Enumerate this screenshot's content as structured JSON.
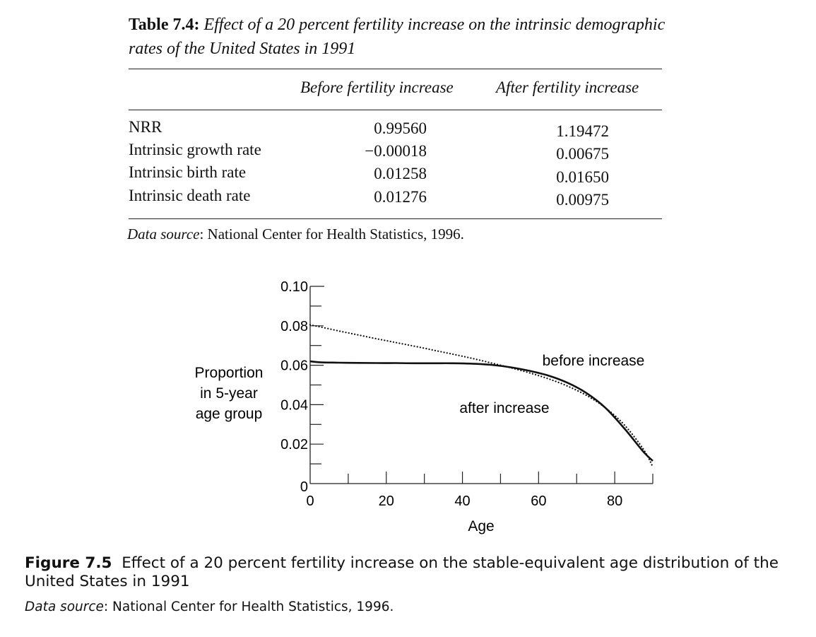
{
  "table": {
    "label": "Table 7.4:",
    "title": "Effect of a 20 percent fertility increase on the intrinsic demographic rates of the United States in 1991",
    "columns": [
      "Before fertility increase",
      "After fertility increase"
    ],
    "rows": [
      {
        "label": "NRR",
        "before": "0.99560",
        "after": "1.19472"
      },
      {
        "label": "Intrinsic growth rate",
        "before": "−0.00018",
        "after": "0.00675"
      },
      {
        "label": "Intrinsic birth rate",
        "before": "0.01258",
        "after": "0.01650"
      },
      {
        "label": "Intrinsic death rate",
        "before": "0.01276",
        "after": "0.00975"
      }
    ],
    "source_label": "Data source",
    "source_text": ": National Center for Health Statistics, 1996."
  },
  "chart_data": {
    "type": "line",
    "xlabel": "Age",
    "ylabel": "Proportion in 5-year age group",
    "xlim": [
      0,
      90
    ],
    "ylim": [
      0,
      0.1
    ],
    "x_ticks": [
      "0",
      "20",
      "40",
      "60",
      "80"
    ],
    "y_ticks": [
      "0",
      "0.02",
      "0.04",
      "0.06",
      "0.08",
      "0.10"
    ],
    "grid": false,
    "series": [
      {
        "name": "before increase",
        "style": "solid",
        "x": [
          0,
          2.5,
          7.5,
          12.5,
          17.5,
          22.5,
          27.5,
          32.5,
          37.5,
          42.5,
          47.5,
          52.5,
          57.5,
          62.5,
          67.5,
          72.5,
          77.5,
          82.5,
          87.5,
          90
        ],
        "y": [
          0.062,
          0.0615,
          0.0613,
          0.0612,
          0.0611,
          0.0611,
          0.061,
          0.061,
          0.061,
          0.0608,
          0.0602,
          0.059,
          0.0572,
          0.0548,
          0.0512,
          0.046,
          0.0385,
          0.028,
          0.0162,
          0.0115
        ]
      },
      {
        "name": "after increase",
        "style": "dotted",
        "x": [
          0,
          2.5,
          7.5,
          12.5,
          17.5,
          22.5,
          27.5,
          32.5,
          37.5,
          42.5,
          47.5,
          52.5,
          57.5,
          62.5,
          67.5,
          72.5,
          77.5,
          82.5,
          87.5,
          90
        ],
        "y": [
          0.0805,
          0.0795,
          0.0774,
          0.0754,
          0.0734,
          0.0715,
          0.0696,
          0.0676,
          0.0656,
          0.0635,
          0.0612,
          0.0588,
          0.0562,
          0.0532,
          0.0495,
          0.0448,
          0.0385,
          0.0298,
          0.0175,
          0.0085
        ]
      }
    ]
  },
  "figure": {
    "label": "Figure 7.5",
    "caption": "Effect of a 20 percent fertility increase on the stable-equivalent age distribution of the United States in 1991",
    "source_label": "Data source",
    "source_text": ": National Center for Health Statistics, 1996."
  }
}
